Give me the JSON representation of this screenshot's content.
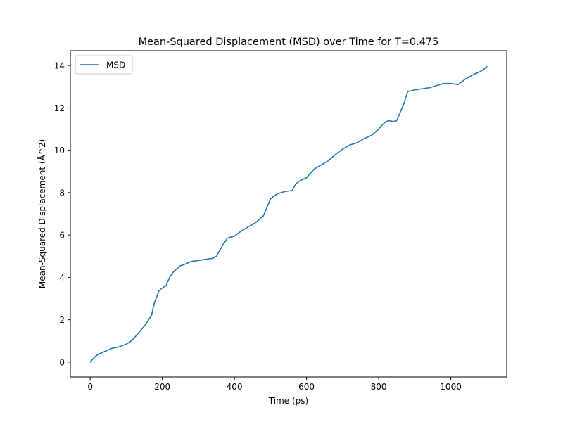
{
  "chart_data": {
    "type": "line",
    "title": "Mean-Squared Displacement (MSD) over Time for T=0.475",
    "xlabel": "Time (ps)",
    "ylabel": "Mean-Squared Displacement (Å^2)",
    "xlim": [
      -55,
      1155
    ],
    "ylim": [
      -0.7,
      14.7
    ],
    "xticks": [
      0,
      200,
      400,
      600,
      800,
      1000
    ],
    "yticks": [
      0,
      2,
      4,
      6,
      8,
      10,
      12,
      14
    ],
    "grid": false,
    "legend": {
      "position": "top-left"
    },
    "series": [
      {
        "name": "MSD",
        "color": "#1f77b4",
        "x": [
          0,
          10,
          20,
          40,
          60,
          80,
          100,
          110,
          120,
          130,
          140,
          150,
          160,
          170,
          175,
          180,
          185,
          190,
          200,
          210,
          220,
          230,
          240,
          250,
          260,
          280,
          300,
          320,
          340,
          350,
          360,
          370,
          375,
          380,
          390,
          400,
          420,
          440,
          460,
          480,
          490,
          500,
          510,
          520,
          540,
          560,
          570,
          580,
          600,
          620,
          640,
          660,
          680,
          700,
          720,
          740,
          760,
          780,
          800,
          810,
          820,
          830,
          840,
          850,
          860,
          870,
          880,
          885,
          890,
          900,
          920,
          940,
          960,
          980,
          1000,
          1020,
          1040,
          1060,
          1080,
          1090,
          1100
        ],
        "y": [
          0.0,
          0.2,
          0.35,
          0.5,
          0.65,
          0.72,
          0.85,
          0.95,
          1.1,
          1.3,
          1.5,
          1.7,
          1.95,
          2.2,
          2.6,
          2.9,
          3.1,
          3.35,
          3.5,
          3.6,
          4.0,
          4.25,
          4.4,
          4.55,
          4.6,
          4.75,
          4.8,
          4.85,
          4.9,
          5.0,
          5.3,
          5.6,
          5.7,
          5.85,
          5.9,
          5.95,
          6.2,
          6.4,
          6.6,
          6.9,
          7.3,
          7.7,
          7.85,
          7.95,
          8.05,
          8.1,
          8.4,
          8.55,
          8.7,
          9.1,
          9.3,
          9.5,
          9.8,
          10.05,
          10.25,
          10.35,
          10.55,
          10.7,
          11.0,
          11.2,
          11.35,
          11.4,
          11.35,
          11.4,
          11.8,
          12.2,
          12.75,
          12.8,
          12.8,
          12.85,
          12.9,
          12.95,
          13.05,
          13.15,
          13.15,
          13.1,
          13.35,
          13.55,
          13.7,
          13.8,
          13.95
        ]
      }
    ]
  }
}
